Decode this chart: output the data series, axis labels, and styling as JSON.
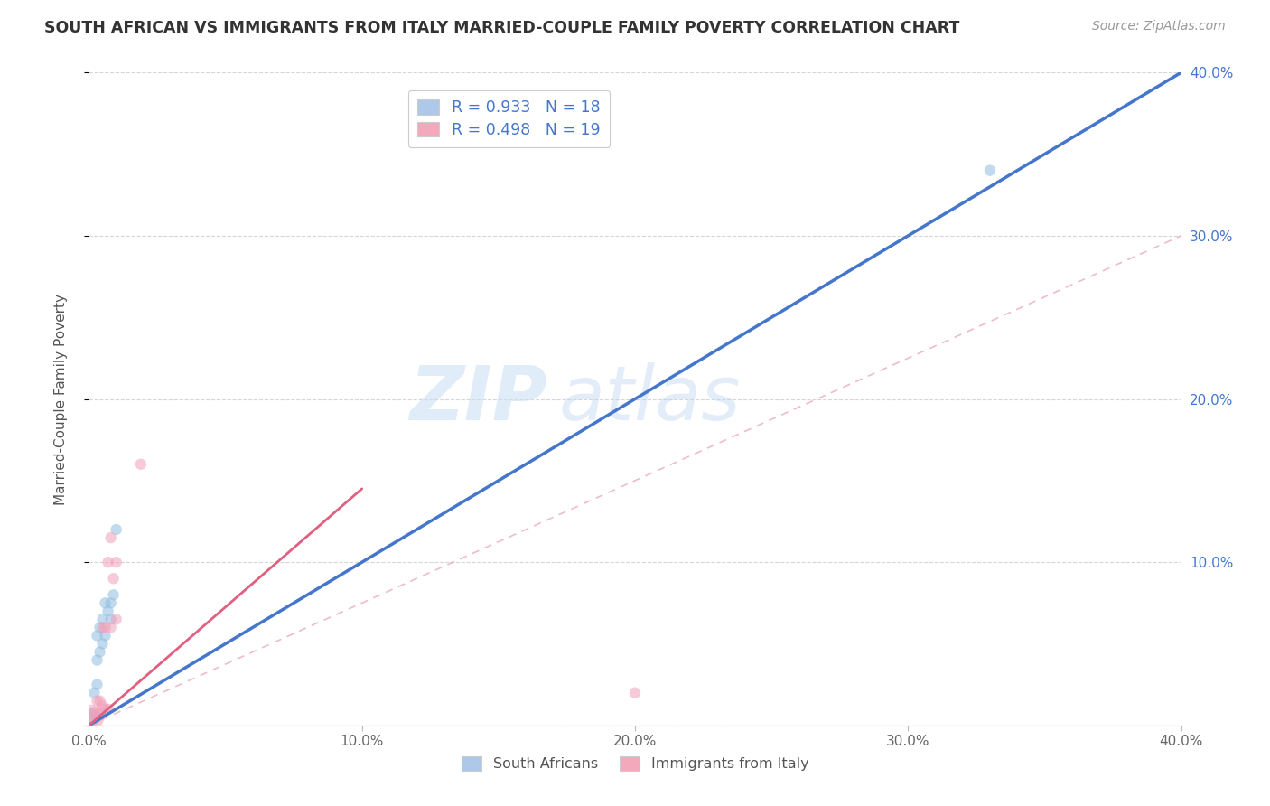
{
  "title": "SOUTH AFRICAN VS IMMIGRANTS FROM ITALY MARRIED-COUPLE FAMILY POVERTY CORRELATION CHART",
  "source": "Source: ZipAtlas.com",
  "ylabel": "Married-Couple Family Poverty",
  "xlim": [
    0,
    0.4
  ],
  "ylim": [
    0,
    0.4
  ],
  "xticks": [
    0.0,
    0.1,
    0.2,
    0.3,
    0.4
  ],
  "yticks": [
    0.0,
    0.1,
    0.2,
    0.3,
    0.4
  ],
  "xticklabels": [
    "0.0%",
    "10.0%",
    "20.0%",
    "30.0%",
    "40.0%"
  ],
  "yticklabels": [
    "",
    "10.0%",
    "20.0%",
    "30.0%",
    "40.0%"
  ],
  "legend1_label": "R = 0.933   N = 18",
  "legend2_label": "R = 0.498   N = 19",
  "legend1_color": "#adc8e8",
  "legend2_color": "#f4a8bc",
  "watermark_zip": "ZIP",
  "watermark_atlas": "atlas",
  "south_african_color": "#90bce0",
  "italy_color": "#f0a0b8",
  "south_african_line_color": "#4477cc",
  "italy_solid_line_color": "#e06080",
  "italy_dashed_line_color": "#e8a0b0",
  "grid_color": "#cccccc",
  "background_color": "#ffffff",
  "sa_line_x": [
    0.0,
    0.4
  ],
  "sa_line_y": [
    0.0,
    0.4
  ],
  "italy_solid_line_x": [
    0.0,
    0.1
  ],
  "italy_solid_line_y": [
    0.0,
    0.145
  ],
  "italy_dashed_line_x": [
    0.0,
    0.4
  ],
  "italy_dashed_line_y": [
    0.0,
    0.3
  ],
  "south_african_x": [
    0.001,
    0.002,
    0.002,
    0.003,
    0.003,
    0.003,
    0.004,
    0.004,
    0.005,
    0.005,
    0.006,
    0.006,
    0.007,
    0.008,
    0.008,
    0.009,
    0.01,
    0.33
  ],
  "south_african_y": [
    0.005,
    0.005,
    0.02,
    0.025,
    0.04,
    0.055,
    0.045,
    0.06,
    0.05,
    0.065,
    0.055,
    0.075,
    0.07,
    0.065,
    0.075,
    0.08,
    0.12,
    0.34
  ],
  "south_african_size": [
    200,
    120,
    80,
    80,
    80,
    80,
    80,
    80,
    80,
    80,
    80,
    80,
    80,
    80,
    80,
    80,
    80,
    80
  ],
  "italy_x": [
    0.001,
    0.002,
    0.003,
    0.003,
    0.004,
    0.004,
    0.005,
    0.005,
    0.006,
    0.006,
    0.007,
    0.007,
    0.008,
    0.008,
    0.009,
    0.01,
    0.01,
    0.019,
    0.2
  ],
  "italy_y": [
    0.005,
    0.008,
    0.005,
    0.015,
    0.008,
    0.015,
    0.012,
    0.06,
    0.01,
    0.06,
    0.01,
    0.1,
    0.06,
    0.115,
    0.09,
    0.065,
    0.1,
    0.16,
    0.02
  ],
  "italy_size": [
    400,
    80,
    80,
    80,
    80,
    80,
    80,
    80,
    80,
    80,
    80,
    80,
    80,
    80,
    80,
    80,
    80,
    80,
    80
  ]
}
